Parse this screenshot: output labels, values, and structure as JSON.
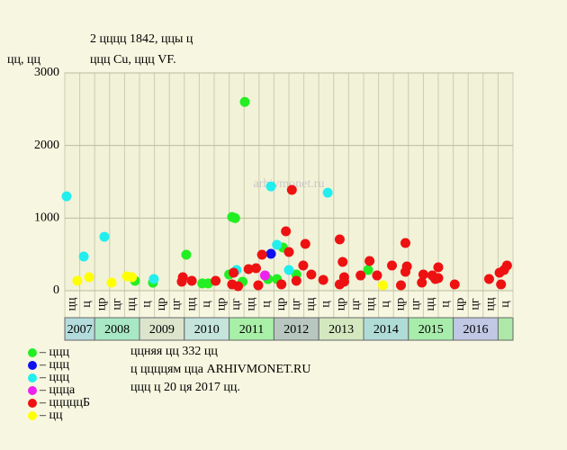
{
  "chart_data": {
    "type": "scatter",
    "title": "2 цццц 1842, ццы ц",
    "subtitle": "ццц Cu, ццц VF.",
    "y_label": "цц, цц",
    "watermark": "arhivmonet.ru",
    "xlim": [
      0,
      30
    ],
    "ylim": [
      0,
      3000
    ],
    "yticks": [
      0,
      1000,
      2000,
      3000
    ],
    "grid": true,
    "column_labels": [
      "цц",
      "ц",
      "цр",
      "цг",
      "цц",
      "ц",
      "цр",
      "цг",
      "цц",
      "ц",
      "цр",
      "цг",
      "цц",
      "ц",
      "цр",
      "цг",
      "цц",
      "ц",
      "цр",
      "цг",
      "цц",
      "ц",
      "цр",
      "цг",
      "цц",
      "ц",
      "цр",
      "цг",
      "цц",
      "ц"
    ],
    "years": [
      {
        "label": "2007",
        "color": "#b4dcdc"
      },
      {
        "label": "2008",
        "color": "#a8e8c4"
      },
      {
        "label": "2009",
        "color": "#dce4cc"
      },
      {
        "label": "2010",
        "color": "#c4e4dc"
      },
      {
        "label": "2011",
        "color": "#a8f0a8"
      },
      {
        "label": "2012",
        "color": "#b8c8c0"
      },
      {
        "label": "2013",
        "color": "#d4e8c0"
      },
      {
        "label": "2014",
        "color": "#b0dcd8"
      },
      {
        "label": "2015",
        "color": "#a8ecac"
      },
      {
        "label": "2016",
        "color": "#c0c8e4"
      }
    ],
    "series": [
      {
        "name": "– ццц",
        "color": "#22ee22",
        "x": [
          8.13,
          12.05,
          11.2,
          11.4,
          4.7,
          5.9,
          9.2,
          9.6,
          11.9,
          11.0,
          14.6,
          14.2,
          15.5,
          20.3,
          13.6
        ],
        "values": [
          496,
          2600,
          1015,
          1000,
          136,
          110,
          100,
          100,
          124,
          223,
          595,
          160,
          223,
          285,
          160
        ]
      },
      {
        "name": "– ццц",
        "color": "#1010ee",
        "x": [
          13.8
        ],
        "values": [
          508
        ]
      },
      {
        "name": "– ццц",
        "color": "#22eeee",
        "x": [
          0.12,
          1.27,
          2.65,
          5.96,
          11.5,
          13.8,
          14.2,
          15.0,
          17.6
        ],
        "values": [
          1300,
          471,
          743,
          161,
          285,
          1437,
          632,
          285,
          1350
        ]
      },
      {
        "name": "– ццца",
        "color": "#ee22ee",
        "x": [
          13.4
        ],
        "values": [
          210
        ]
      },
      {
        "name": "– цццццБ",
        "color": "#ee1111",
        "x": [
          7.9,
          7.83,
          8.5,
          10.1,
          11.3,
          11.2,
          11.6,
          12.3,
          12.95,
          12.8,
          13.2,
          14.8,
          15.2,
          15.0,
          14.5,
          15.96,
          16.1,
          16.5,
          17.3,
          15.5,
          18.4,
          18.4,
          18.6,
          18.7,
          18.7,
          19.8,
          20.4,
          20.9,
          21.9,
          22.5,
          22.8,
          22.9,
          22.8,
          23.9,
          24.0,
          24.6,
          24.8,
          25.0,
          25.0,
          26.1,
          28.4,
          29.1,
          29.2,
          29.4,
          29.6
        ],
        "values": [
          186,
          124,
          136,
          136,
          248,
          87,
          62,
          297,
          74,
          310,
          496,
          818,
          1388,
          533,
          87,
          347,
          645,
          223,
          149,
          136,
          87,
          707,
          397,
          186,
          124,
          210,
          409,
          210,
          347,
          74,
          657,
          335,
          260,
          112,
          223,
          210,
          161,
          322,
          173,
          87,
          161,
          248,
          87,
          285,
          347
        ]
      },
      {
        "name": "– цц",
        "color": "#ffff00",
        "x": [
          0.84,
          1.63,
          3.13,
          4.16,
          4.5,
          21.3
        ],
        "values": [
          136,
          186,
          112,
          198,
          186,
          74
        ]
      }
    ],
    "notes": [
      "ццняя цц 332 цц",
      "ц ццццям цца ARHIVMONET.RU",
      "ццц ц 20 ця 2017 цц."
    ]
  }
}
